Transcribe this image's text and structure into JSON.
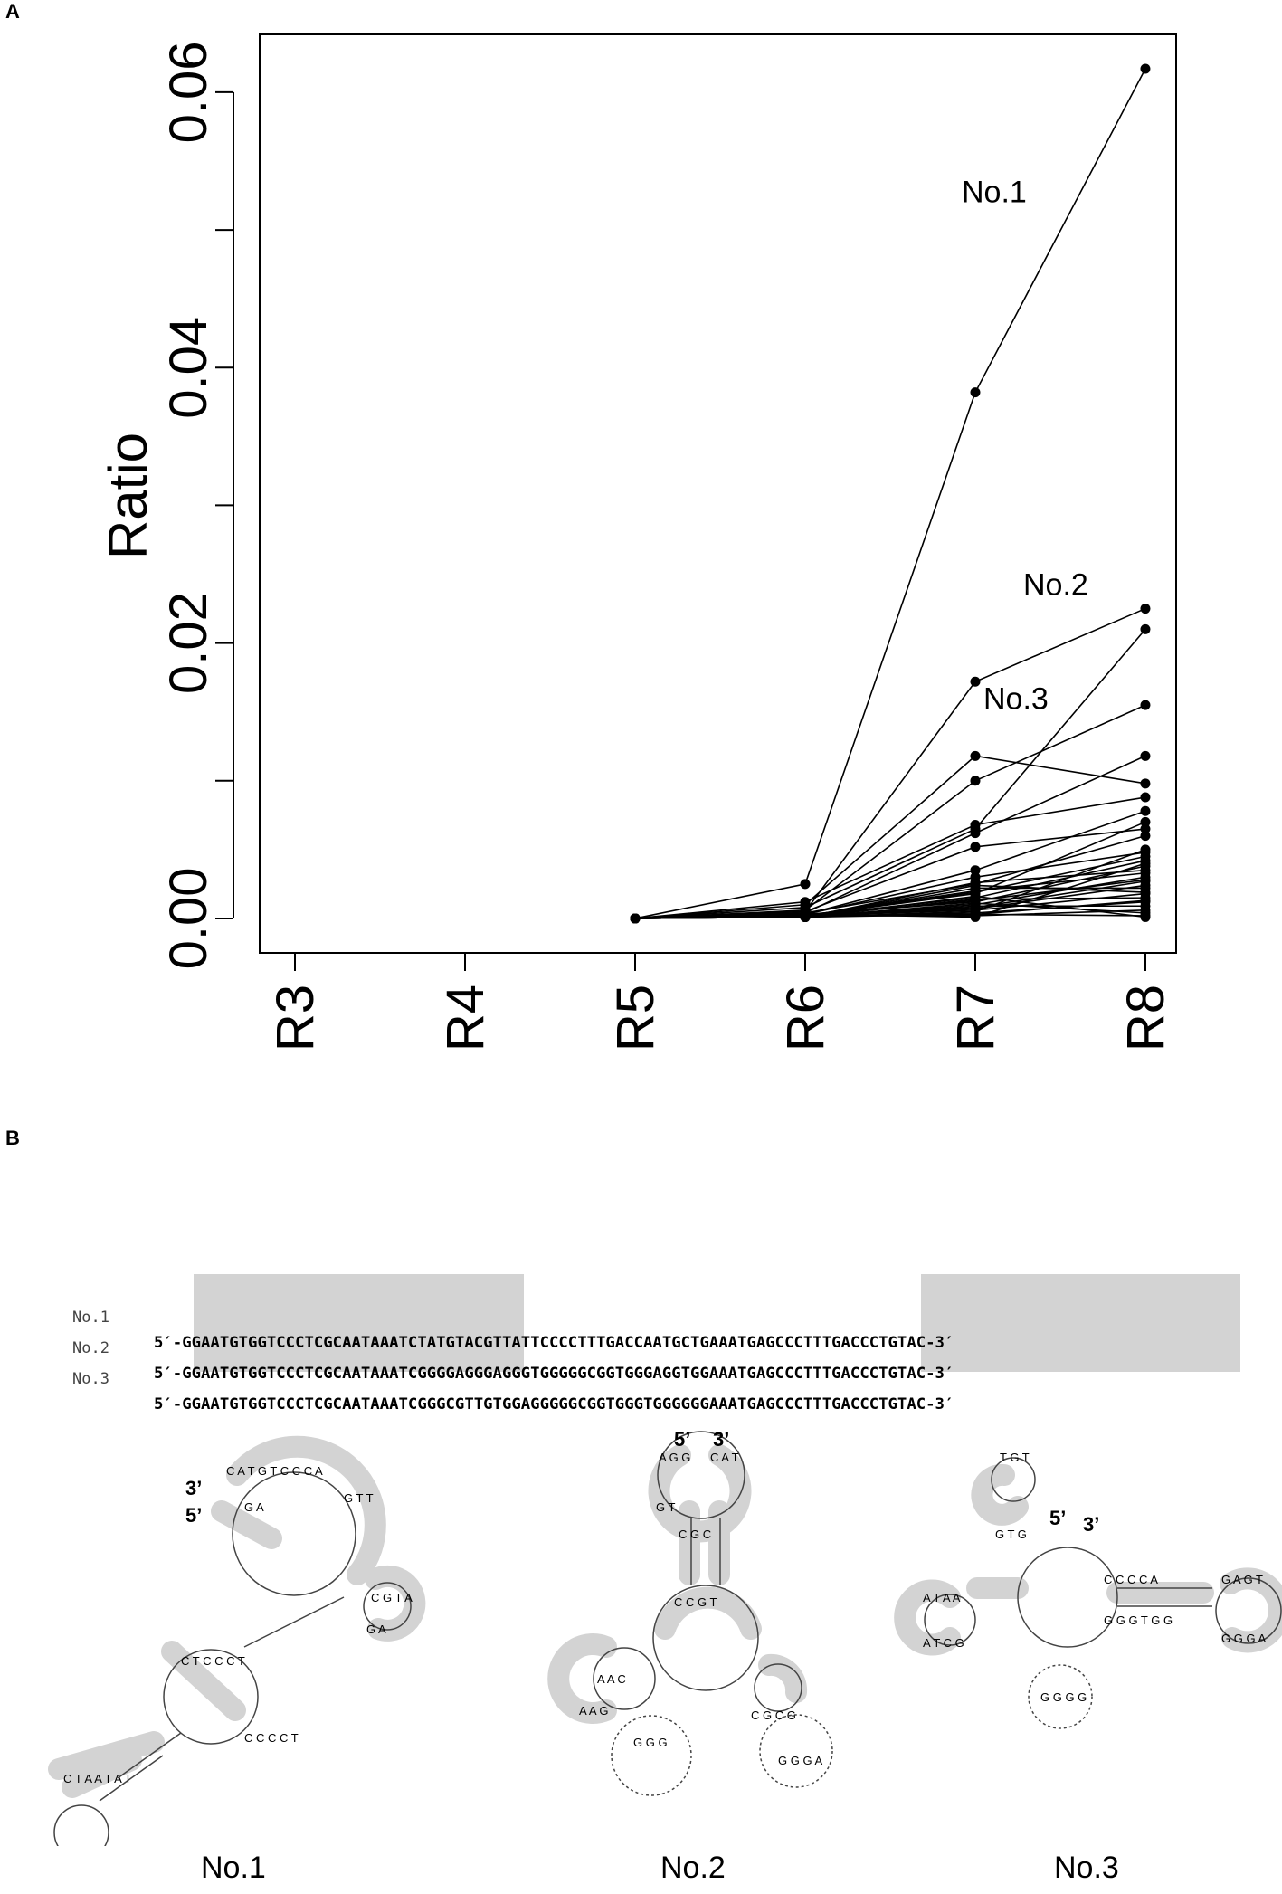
{
  "panel_a": {
    "letter": "A",
    "labels": [
      "No.1",
      "No.2",
      "No.3"
    ]
  },
  "panel_b": {
    "letter": "B",
    "sequences": [
      {
        "name": "No.1",
        "text": "5′-GGAATGTGGTCCCTCGCAATAAATCTATGTACGTTATTCCCCTTTGACCAATGCTGAAATGAGCCCTTTGACCCTGTAC-3′"
      },
      {
        "name": "No.2",
        "text": "5′-GGAATGTGGTCCCTCGCAATAAATCGGGGAGGGAGGGTGGGGGCGGTGGGAGGTGGAAATGAGCCCTTTGACCCTGTAC-3′"
      },
      {
        "name": "No.3",
        "text": "5′-GGAATGTGGTCCCTCGCAATAAATCGGGCGTTGTGGAGGGGGCGGTGGGTGGGGGGAAATGAGCCCTTTGACCCTGTAC-3′"
      }
    ],
    "structures": [
      {
        "name": "No.1",
        "end5": "5’",
        "end3": "3’"
      },
      {
        "name": "No.2",
        "end5": "5’",
        "end3": "3’"
      },
      {
        "name": "No.3",
        "end5": "5’",
        "end3": "3’"
      }
    ]
  },
  "chart_data": {
    "type": "line",
    "title": "",
    "xlabel": "",
    "ylabel": "Ratio",
    "categories": [
      "R3",
      "R4",
      "R5",
      "R6",
      "R7",
      "R8"
    ],
    "yticks": [
      "0.00",
      "0.02",
      "0.04",
      "0.06"
    ],
    "ylim": [
      -0.0025,
      0.0642
    ],
    "grid": false,
    "annotations": [
      {
        "text": "No.1",
        "near_category": "R7",
        "value": 0.052
      },
      {
        "text": "No.2",
        "near_category": "R8",
        "value": 0.0235
      },
      {
        "text": "No.3",
        "near_category": "R7",
        "value": 0.0152
      }
    ],
    "series": [
      {
        "values": [
          null,
          null,
          0.0,
          0.0025,
          0.0382,
          0.0617
        ]
      },
      {
        "values": [
          null,
          null,
          0.0,
          0.0005,
          0.0172,
          0.0225
        ]
      },
      {
        "values": [
          null,
          null,
          0.0,
          0.0008,
          0.0065,
          0.021
        ]
      },
      {
        "values": [
          null,
          null,
          0.0,
          0.0006,
          0.01,
          0.0155
        ]
      },
      {
        "values": [
          null,
          null,
          0.0,
          0.001,
          0.0118,
          0.0098
        ]
      },
      {
        "values": [
          null,
          null,
          0.0,
          0.0004,
          0.0062,
          0.0118
        ]
      },
      {
        "values": [
          null,
          null,
          0.0,
          0.0012,
          0.0068,
          0.0088
        ]
      },
      {
        "values": [
          null,
          null,
          0.0,
          0.0003,
          0.0035,
          0.0078
        ]
      },
      {
        "values": [
          null,
          null,
          0.0,
          0.0005,
          0.0052,
          0.0065
        ]
      },
      {
        "values": [
          null,
          null,
          0.0,
          0.0004,
          0.0025,
          0.006
        ]
      },
      {
        "values": [
          null,
          null,
          0.0,
          0.0002,
          0.0018,
          0.007
        ]
      },
      {
        "values": [
          null,
          null,
          0.0,
          0.0003,
          0.003,
          0.0048
        ]
      },
      {
        "values": [
          null,
          null,
          0.0,
          0.0002,
          0.0015,
          0.0042
        ]
      },
      {
        "values": [
          null,
          null,
          0.0,
          0.0003,
          0.0012,
          0.0038
        ]
      },
      {
        "values": [
          null,
          null,
          0.0,
          0.0002,
          0.002,
          0.0033
        ]
      },
      {
        "values": [
          null,
          null,
          0.0,
          0.0001,
          0.001,
          0.003
        ]
      },
      {
        "values": [
          null,
          null,
          0.0,
          0.0002,
          0.0008,
          0.0027
        ]
      },
      {
        "values": [
          null,
          null,
          0.0,
          0.0001,
          0.0022,
          0.0022
        ]
      },
      {
        "values": [
          null,
          null,
          0.0,
          0.0002,
          0.0006,
          0.0018
        ]
      },
      {
        "values": [
          null,
          null,
          0.0,
          0.0001,
          0.0014,
          0.0015
        ]
      },
      {
        "values": [
          null,
          null,
          0.0,
          0.0001,
          0.0004,
          0.0012
        ]
      },
      {
        "values": [
          null,
          null,
          0.0,
          0.0001,
          0.0009,
          0.0009
        ]
      },
      {
        "values": [
          null,
          null,
          0.0,
          0.0002,
          0.0002,
          0.0006
        ]
      },
      {
        "values": [
          null,
          null,
          0.0,
          0.0001,
          0.0011,
          0.0004
        ]
      },
      {
        "values": [
          null,
          null,
          0.0,
          0.0001,
          0.0003,
          0.0002
        ]
      },
      {
        "values": [
          null,
          null,
          0.0,
          0.0001,
          0.0016,
          0.0001
        ]
      },
      {
        "values": [
          null,
          null,
          0.0,
          0.0002,
          0.0007,
          0.0024
        ]
      },
      {
        "values": [
          null,
          null,
          0.0,
          0.0001,
          0.0026,
          0.0035
        ]
      },
      {
        "values": [
          null,
          null,
          0.0,
          0.0003,
          0.0001,
          0.004
        ]
      },
      {
        "values": [
          null,
          null,
          0.0,
          0.0002,
          0.0019,
          0.0045
        ]
      },
      {
        "values": [
          null,
          null,
          0.0,
          0.0001,
          0.0005,
          0.005
        ]
      },
      {
        "values": [
          null,
          null,
          0.0,
          0.0002,
          0.0013,
          0.0028
        ]
      },
      {
        "values": [
          null,
          null,
          0.0,
          0.0001,
          0.0024,
          0.0019
        ]
      },
      {
        "values": [
          null,
          null,
          0.0,
          0.0002,
          0.0003,
          0.0013
        ]
      }
    ]
  }
}
